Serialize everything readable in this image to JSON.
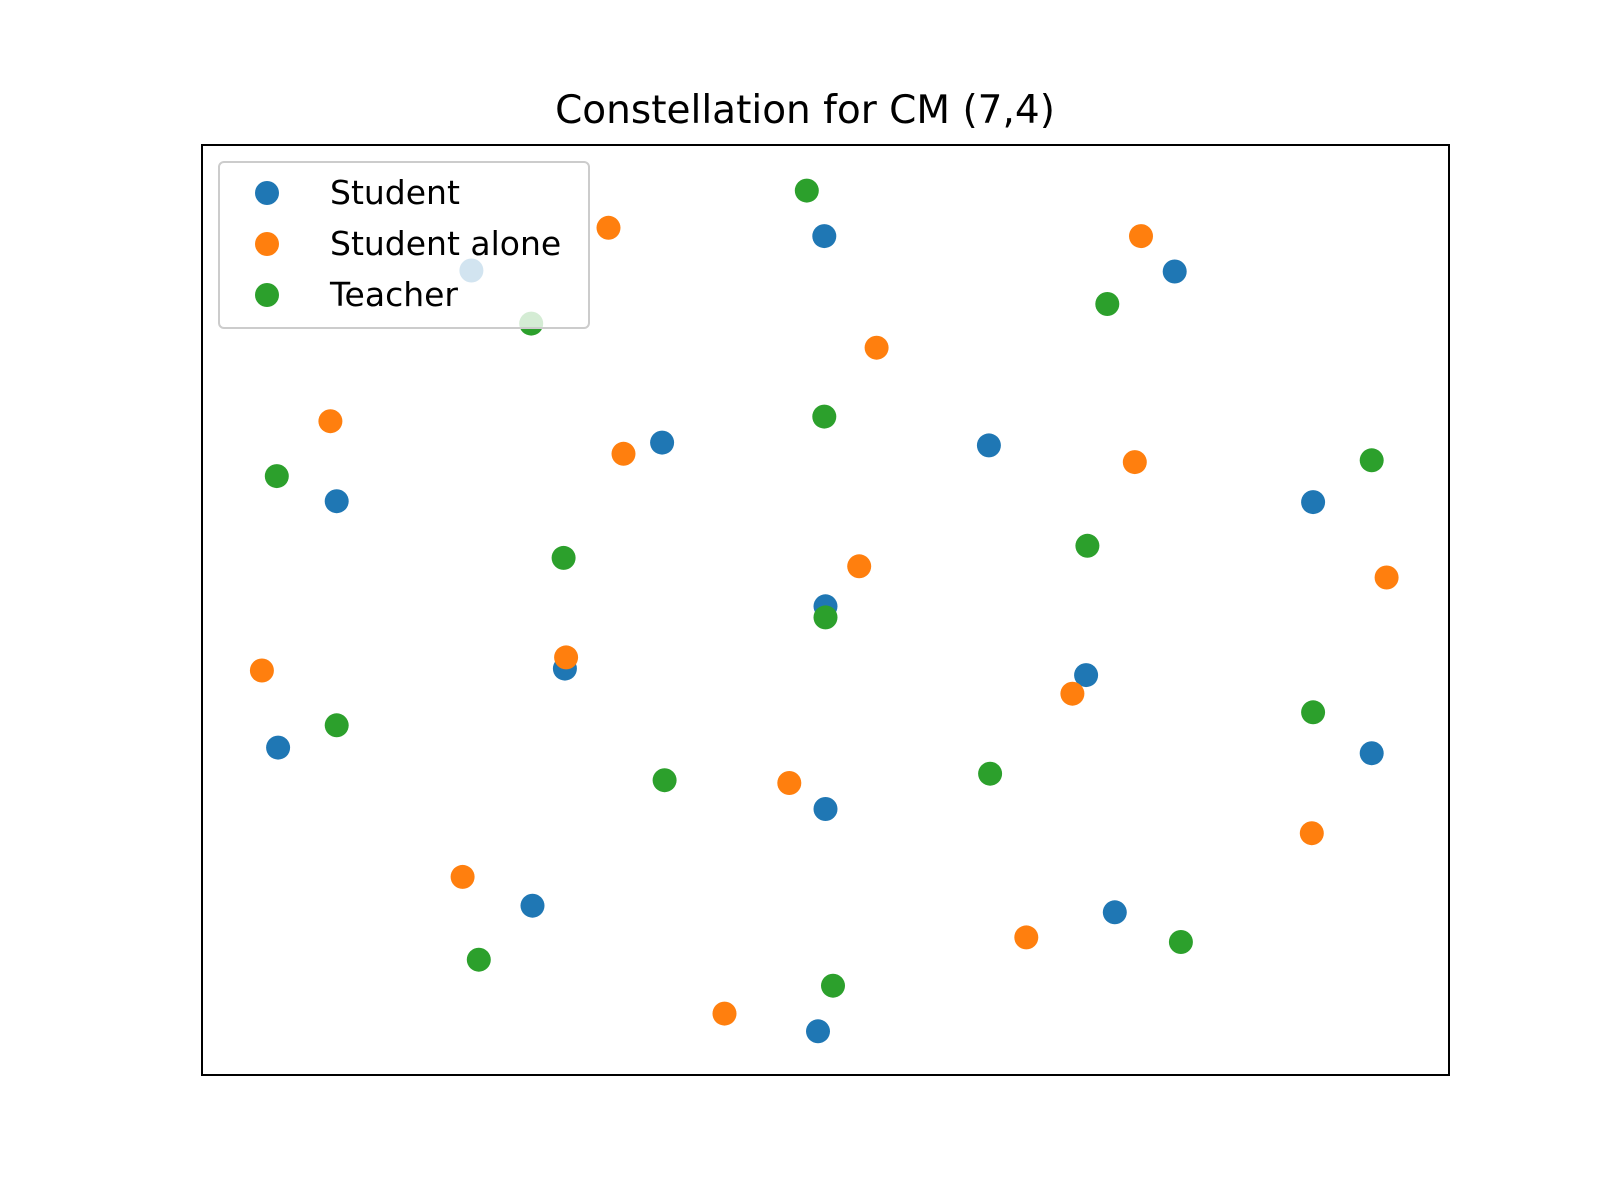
{
  "chart_data": {
    "type": "scatter",
    "title": "Constellation for CM (7,4)",
    "xlabel": "",
    "ylabel": "",
    "xlim": [
      0,
      100
    ],
    "ylim": [
      0,
      100
    ],
    "grid": false,
    "axis_ticks": false,
    "legend_placement": "upper-left",
    "series": [
      {
        "name": "Student",
        "color": "#1f77b4",
        "points": [
          {
            "x": 21.6,
            "y": 86.5
          },
          {
            "x": 49.9,
            "y": 90.2
          },
          {
            "x": 78.0,
            "y": 86.4
          },
          {
            "x": 36.9,
            "y": 68.0
          },
          {
            "x": 63.1,
            "y": 67.7
          },
          {
            "x": 10.8,
            "y": 61.7
          },
          {
            "x": 89.1,
            "y": 61.6
          },
          {
            "x": 50.0,
            "y": 50.4
          },
          {
            "x": 29.1,
            "y": 43.7
          },
          {
            "x": 70.9,
            "y": 43.0
          },
          {
            "x": 6.1,
            "y": 35.2
          },
          {
            "x": 93.8,
            "y": 34.6
          },
          {
            "x": 50.0,
            "y": 28.6
          },
          {
            "x": 26.5,
            "y": 18.2
          },
          {
            "x": 73.2,
            "y": 17.5
          },
          {
            "x": 49.4,
            "y": 4.7
          }
        ]
      },
      {
        "name": "Student alone",
        "color": "#ff7f0e",
        "points": [
          {
            "x": 32.6,
            "y": 91.1
          },
          {
            "x": 75.3,
            "y": 90.2
          },
          {
            "x": 54.1,
            "y": 78.2
          },
          {
            "x": 10.3,
            "y": 70.3
          },
          {
            "x": 33.8,
            "y": 66.8
          },
          {
            "x": 74.8,
            "y": 65.9
          },
          {
            "x": 52.7,
            "y": 54.7
          },
          {
            "x": 95.0,
            "y": 53.5
          },
          {
            "x": 29.2,
            "y": 44.9
          },
          {
            "x": 4.8,
            "y": 43.5
          },
          {
            "x": 69.8,
            "y": 41.0
          },
          {
            "x": 47.1,
            "y": 31.4
          },
          {
            "x": 89.0,
            "y": 26.0
          },
          {
            "x": 20.9,
            "y": 21.3
          },
          {
            "x": 66.1,
            "y": 14.8
          },
          {
            "x": 41.9,
            "y": 6.6
          }
        ]
      },
      {
        "name": "Teacher",
        "color": "#2ca02c",
        "points": [
          {
            "x": 48.5,
            "y": 95.1
          },
          {
            "x": 72.6,
            "y": 82.9
          },
          {
            "x": 26.4,
            "y": 80.8
          },
          {
            "x": 49.9,
            "y": 70.8
          },
          {
            "x": 93.8,
            "y": 66.1
          },
          {
            "x": 6.0,
            "y": 64.4
          },
          {
            "x": 71.0,
            "y": 56.9
          },
          {
            "x": 29.0,
            "y": 55.6
          },
          {
            "x": 50.0,
            "y": 49.2
          },
          {
            "x": 10.8,
            "y": 37.6
          },
          {
            "x": 89.1,
            "y": 39.0
          },
          {
            "x": 37.1,
            "y": 31.7
          },
          {
            "x": 63.2,
            "y": 32.4
          },
          {
            "x": 22.2,
            "y": 12.4
          },
          {
            "x": 78.5,
            "y": 14.3
          },
          {
            "x": 50.6,
            "y": 9.6
          }
        ]
      }
    ]
  }
}
